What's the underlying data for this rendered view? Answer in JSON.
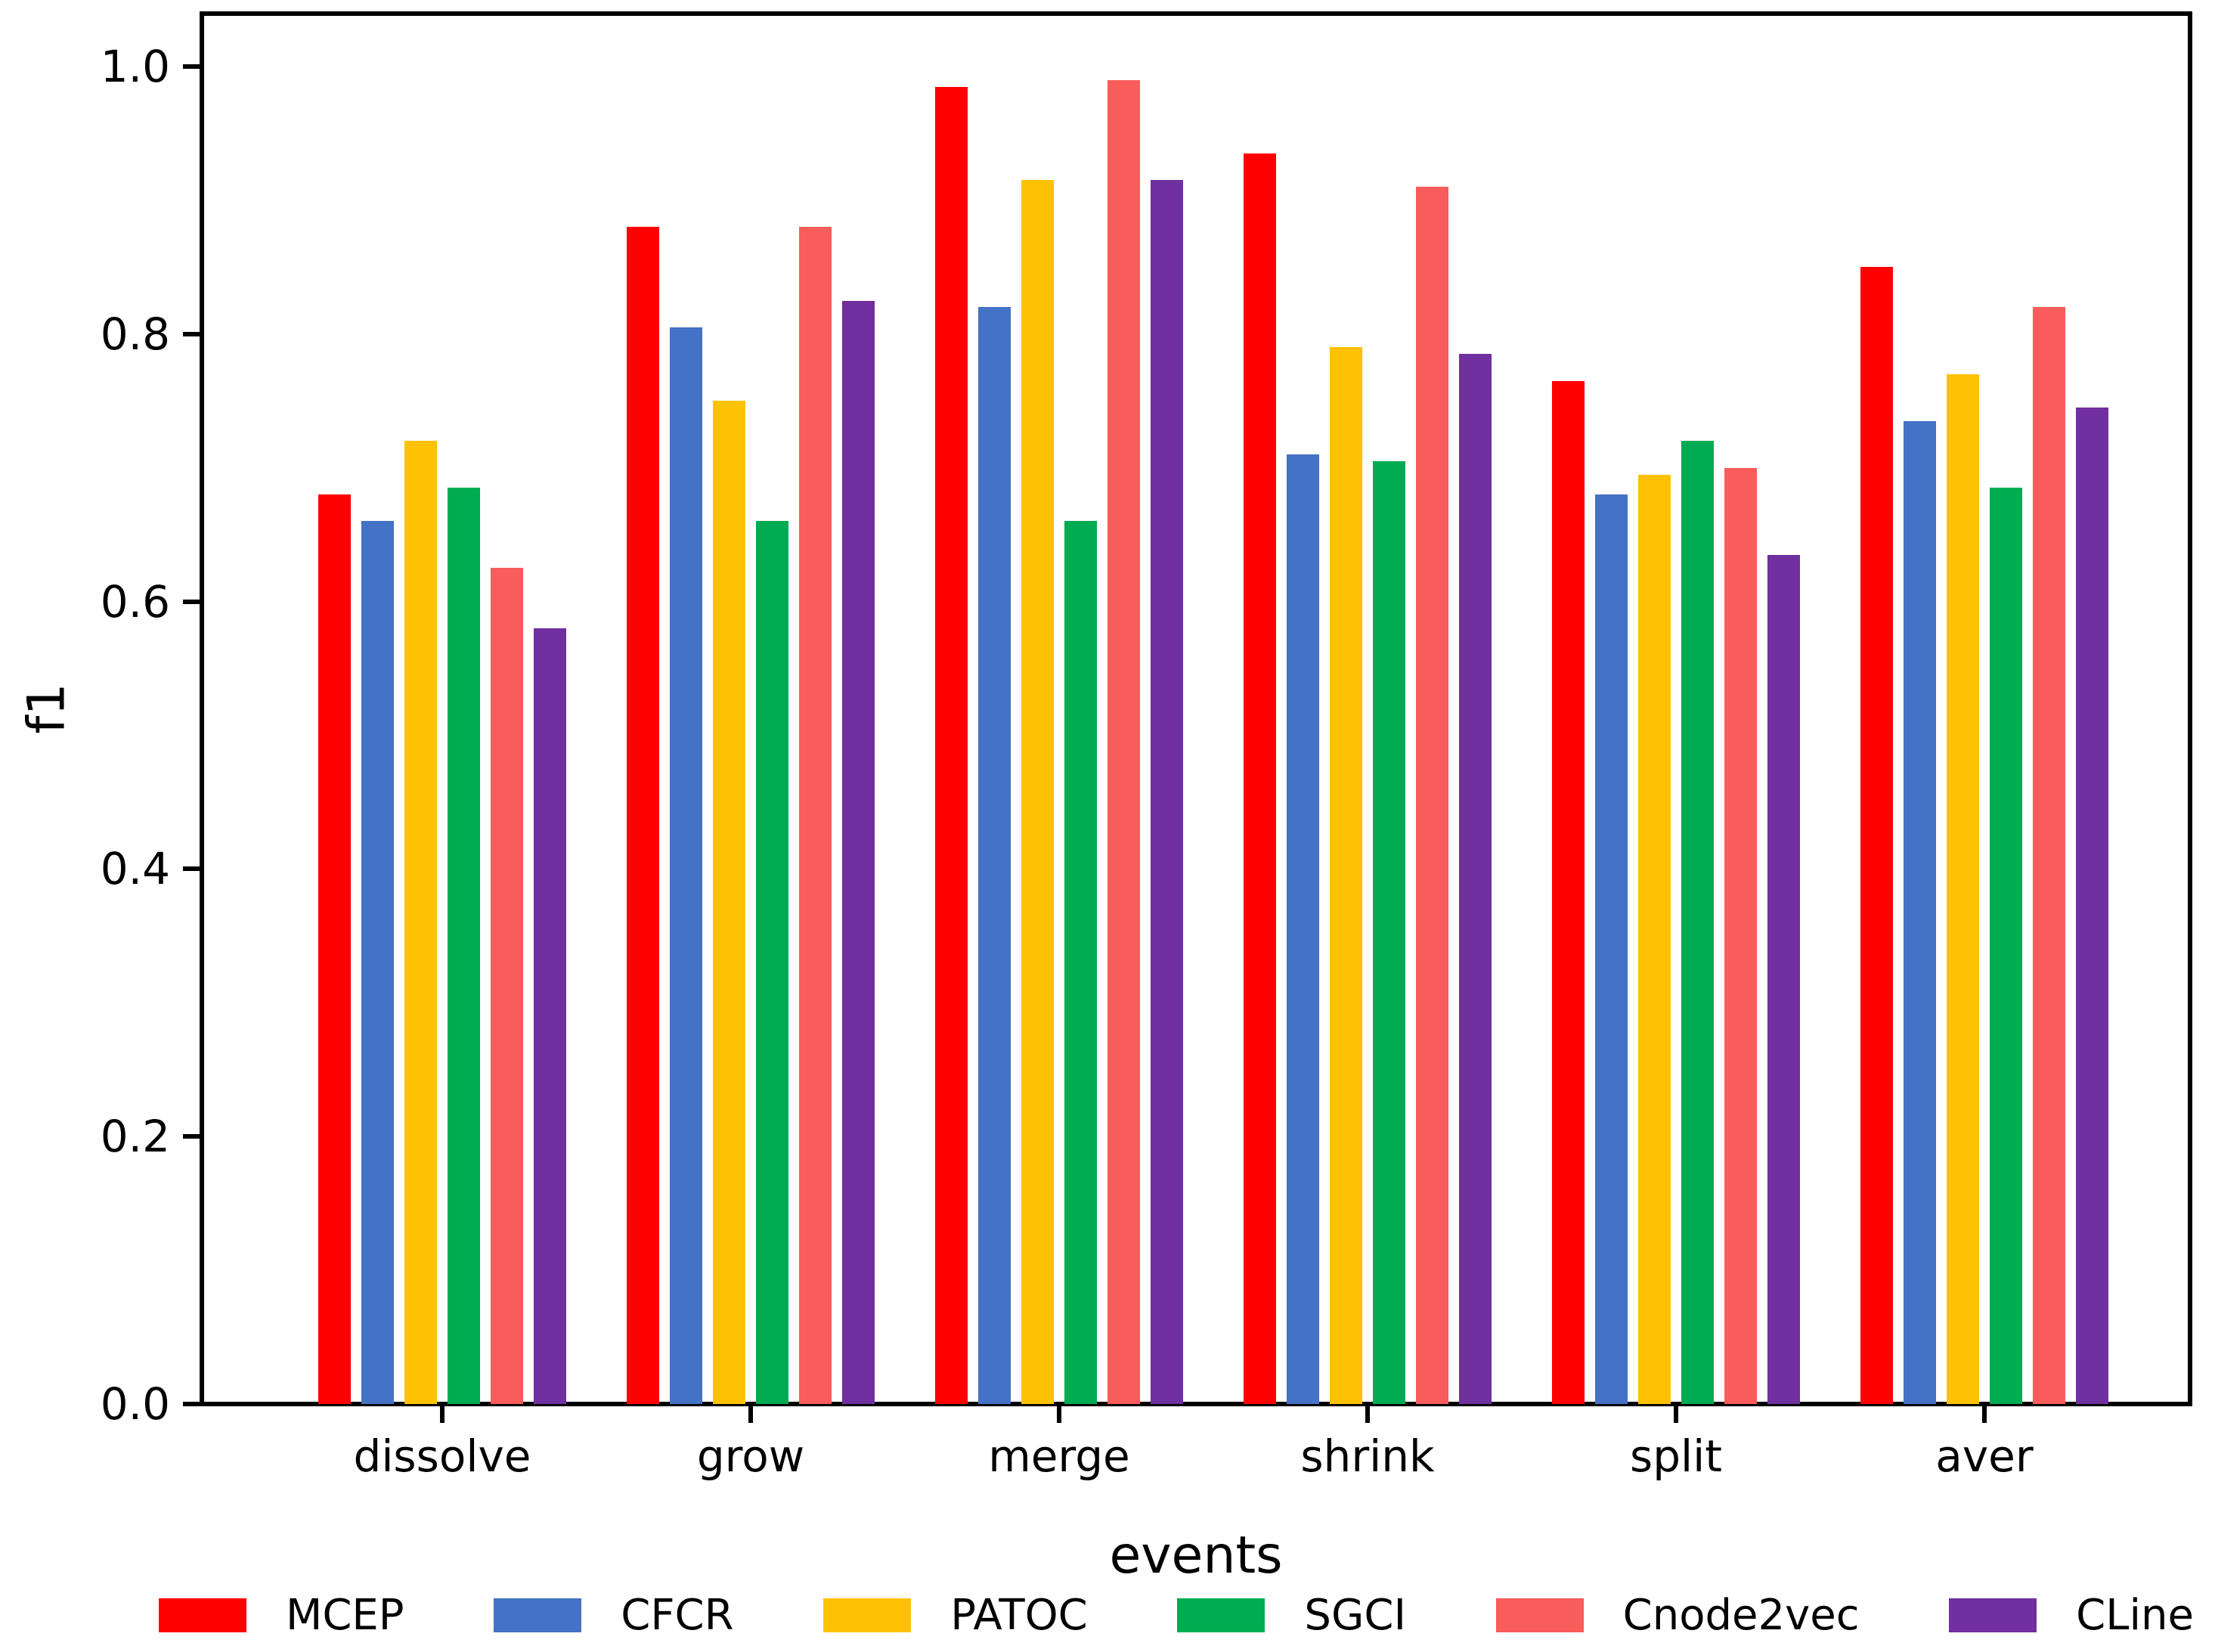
{
  "figure": {
    "background": "#ffffff",
    "axis_color": "#000000"
  },
  "chart_data": {
    "type": "bar",
    "title": "",
    "xlabel": "events",
    "ylabel": "f1",
    "categories": [
      "dissolve",
      "grow",
      "merge",
      "shrink",
      "split",
      "aver"
    ],
    "series": [
      {
        "name": "MCEP",
        "color": "#ff0000",
        "values": [
          0.68,
          0.88,
          0.985,
          0.935,
          0.765,
          0.85
        ]
      },
      {
        "name": "CFCR",
        "color": "#4472c4",
        "values": [
          0.66,
          0.805,
          0.82,
          0.71,
          0.68,
          0.735
        ]
      },
      {
        "name": "PATOC",
        "color": "#ffc103",
        "values": [
          0.72,
          0.75,
          0.915,
          0.79,
          0.695,
          0.77
        ]
      },
      {
        "name": "SGCI",
        "color": "#00ab51",
        "values": [
          0.685,
          0.66,
          0.66,
          0.705,
          0.72,
          0.685
        ]
      },
      {
        "name": "Cnode2vec",
        "color": "#f85c5b",
        "values": [
          0.625,
          0.88,
          0.99,
          0.91,
          0.7,
          0.82
        ]
      },
      {
        "name": "CLine",
        "color": "#7030a0",
        "values": [
          0.58,
          0.825,
          0.915,
          0.785,
          0.635,
          0.745
        ]
      }
    ],
    "ylim": [
      0.0,
      1.04
    ],
    "yticks": [
      "0.0",
      "0.2",
      "0.4",
      "0.6",
      "0.8",
      "1.0"
    ],
    "grid": false,
    "legend_position": "bottom"
  }
}
